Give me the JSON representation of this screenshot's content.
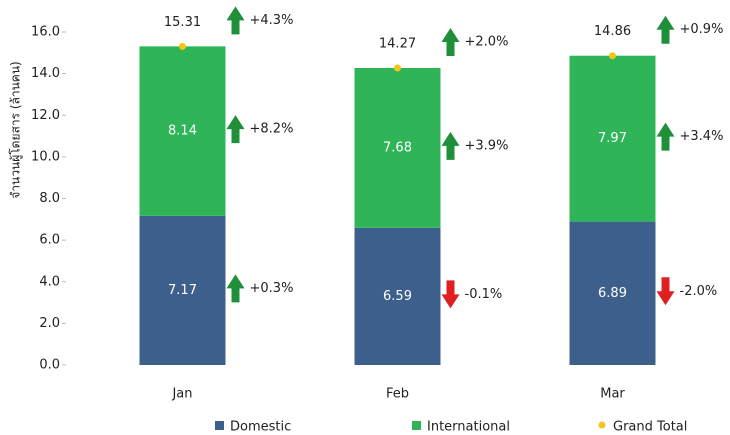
{
  "chart_data": {
    "type": "stacked_bar",
    "y_label": "จำนวนผู้โดยสาร (ล้านคน)",
    "categories": [
      "Jan",
      "Feb",
      "Mar"
    ],
    "ylim": [
      0,
      16
    ],
    "yticks": [
      {
        "value": 0,
        "label": "0.0"
      },
      {
        "value": 2,
        "label": "2.0"
      },
      {
        "value": 4,
        "label": "4.0"
      },
      {
        "value": 6,
        "label": "6.0"
      },
      {
        "value": 8,
        "label": "8.0"
      },
      {
        "value": 10,
        "label": "10.0"
      },
      {
        "value": 12,
        "label": "12.0"
      },
      {
        "value": 14,
        "label": "14.0"
      },
      {
        "value": 16,
        "label": "16.0"
      }
    ],
    "series": [
      {
        "name": "Domestic",
        "color": "#3d5f8c",
        "values": [
          7.17,
          6.59,
          6.89
        ],
        "change_values": [
          0.3,
          -0.1,
          -2.0
        ],
        "change_labels": [
          "+0.3%",
          "-0.1%",
          "-2.0%"
        ]
      },
      {
        "name": "International",
        "color": "#2fb457",
        "values": [
          8.14,
          7.68,
          7.97
        ],
        "change_values": [
          8.2,
          3.9,
          3.4
        ],
        "change_labels": [
          "+8.2%",
          "+3.9%",
          "+3.4%"
        ]
      }
    ],
    "total": {
      "name": "Grand Total",
      "color": "#f2c619",
      "values": [
        15.31,
        14.27,
        14.86
      ],
      "change_values": [
        4.3,
        2.0,
        0.9
      ],
      "change_labels": [
        "+4.3%",
        "+2.0%",
        "+0.9%"
      ]
    },
    "up_color": "#1f8f3a",
    "down_color": "#e02020"
  }
}
